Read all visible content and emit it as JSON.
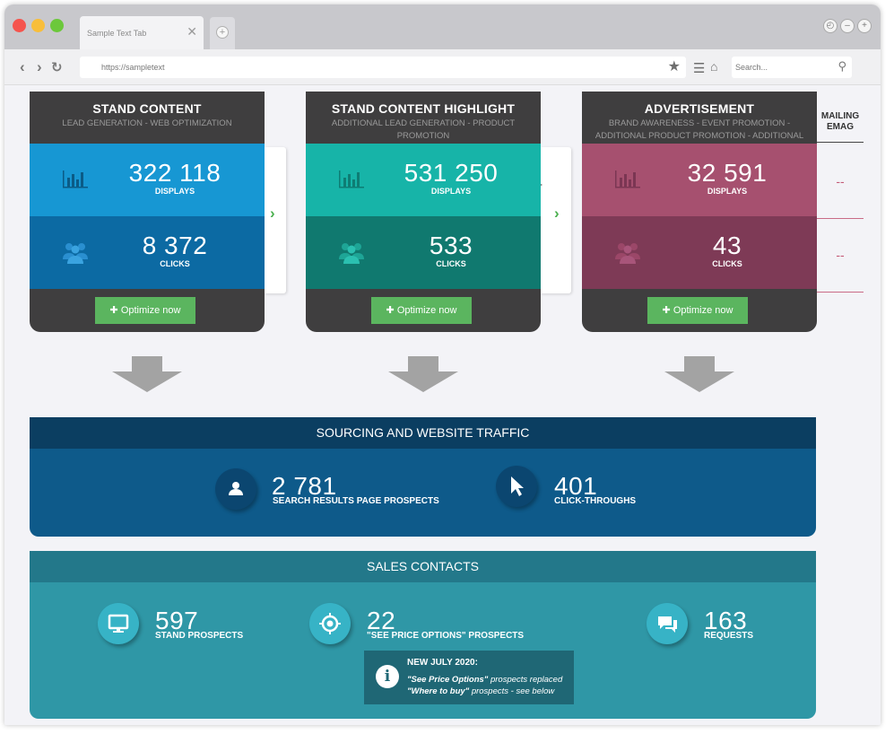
{
  "browser": {
    "tab_title": "Sample Text Tab",
    "url": "https://sampletext",
    "search_placeholder": "Search..."
  },
  "colors": {
    "stand_content_row1": "#1797d3",
    "stand_content_row2": "#0c6aa3",
    "highlight_row1": "#17b4a8",
    "highlight_row2": "#10796f",
    "advertisement_row1": "#a6506f",
    "advertisement_row2": "#7e3a56",
    "optimize_button": "#5bb55f",
    "sourcing_bg": "#0e5a8a",
    "sales_bg": "#2f97a6"
  },
  "products": [
    {
      "title": "STAND CONTENT",
      "subtitle": "LEAD GENERATION - WEB OPTIMIZATION",
      "displays_value": "322 118",
      "displays_label": "DISPLAYS",
      "clicks_value": "8 372",
      "clicks_label": "CLICKS",
      "button": "Optimize now"
    },
    {
      "title": "STAND CONTENT HIGHLIGHT",
      "subtitle": "ADDITIONAL LEAD GENERATION - PRODUCT PROMOTION",
      "displays_value": "531 250",
      "displays_label": "DISPLAYS",
      "clicks_value": "533",
      "clicks_label": "CLICKS",
      "button": "Optimize now"
    },
    {
      "title": "ADVERTISEMENT",
      "subtitle": "BRAND AWARENESS - EVENT PROMOTION - ADDITIONAL PRODUCT PROMOTION - ADDITIONAL LEAD GENERATION",
      "displays_value": "32 591",
      "displays_label": "DISPLAYS",
      "clicks_value": "43",
      "clicks_label": "CLICKS",
      "button": "Optimize now"
    }
  ],
  "mailing": {
    "title_line1": "MAILING",
    "title_line2": "EMAG",
    "value1": "--",
    "value2": "--"
  },
  "sourcing": {
    "title": "SOURCING AND WEBSITE TRAFFIC",
    "metric1_value": "2 781",
    "metric1_label": "SEARCH RESULTS PAGE PROSPECTS",
    "metric2_value": "401",
    "metric2_label": "CLICK-THROUGHS"
  },
  "sales": {
    "title": "SALES CONTACTS",
    "metric1_value": "597",
    "metric1_label": "STAND PROSPECTS",
    "metric2_value": "22",
    "metric2_label": "\"SEE PRICE OPTIONS\" PROSPECTS",
    "metric3_value": "163",
    "metric3_label": "REQUESTS",
    "notice_title": "NEW JULY 2020:",
    "notice_line1_em": "\"See Price Options\"",
    "notice_line1_rest": " prospects replaced",
    "notice_line2_em": "\"Where to buy\"",
    "notice_line2_rest": " prospects - see below"
  }
}
